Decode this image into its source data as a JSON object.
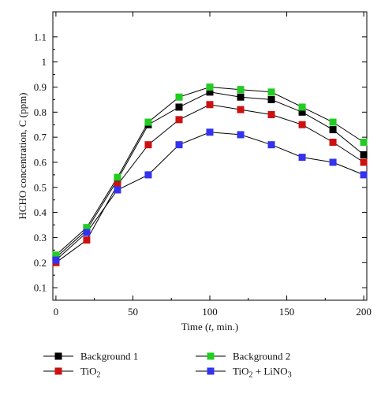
{
  "chart_data": {
    "type": "line",
    "title": "",
    "xlabel_parts": [
      "Time (",
      "t",
      ", min.)"
    ],
    "ylabel": "HCHO concentration, C (ppm)",
    "xlim": [
      -2,
      202
    ],
    "ylim": [
      0.05,
      1.2
    ],
    "xticks": [
      0,
      50,
      100,
      150,
      200
    ],
    "yticks": [
      0.1,
      0.2,
      0.3,
      0.4,
      0.5,
      0.6,
      0.7,
      0.8,
      0.9,
      1,
      1.1
    ],
    "grid": false,
    "legend_position": "bottom",
    "x": [
      0,
      20,
      40,
      60,
      80,
      100,
      120,
      140,
      160,
      180,
      200
    ],
    "series": [
      {
        "name": "Background 1",
        "name_parts": [
          [
            "Background 1",
            "n"
          ]
        ],
        "color": "#000000",
        "values": [
          0.22,
          0.33,
          0.53,
          0.75,
          0.82,
          0.88,
          0.86,
          0.85,
          0.8,
          0.73,
          0.63
        ]
      },
      {
        "name": "Background 2",
        "name_parts": [
          [
            "Background 2",
            "n"
          ]
        ],
        "color": "#22cc22",
        "values": [
          0.23,
          0.34,
          0.54,
          0.76,
          0.86,
          0.9,
          0.89,
          0.88,
          0.82,
          0.76,
          0.68
        ]
      },
      {
        "name": "TiO2",
        "name_parts": [
          [
            "TiO",
            "n"
          ],
          [
            "2",
            "s"
          ]
        ],
        "color": "#cc1111",
        "values": [
          0.2,
          0.29,
          0.51,
          0.67,
          0.77,
          0.83,
          0.81,
          0.79,
          0.75,
          0.68,
          0.6
        ]
      },
      {
        "name": "TiO2 + LiNO3",
        "name_parts": [
          [
            "TiO",
            "n"
          ],
          [
            "2",
            "s"
          ],
          [
            " + LiNO",
            "n"
          ],
          [
            "3",
            "s"
          ]
        ],
        "color": "#3333ee",
        "values": [
          0.21,
          0.32,
          0.49,
          0.55,
          0.67,
          0.72,
          0.71,
          0.67,
          0.62,
          0.6,
          0.55
        ]
      }
    ]
  }
}
